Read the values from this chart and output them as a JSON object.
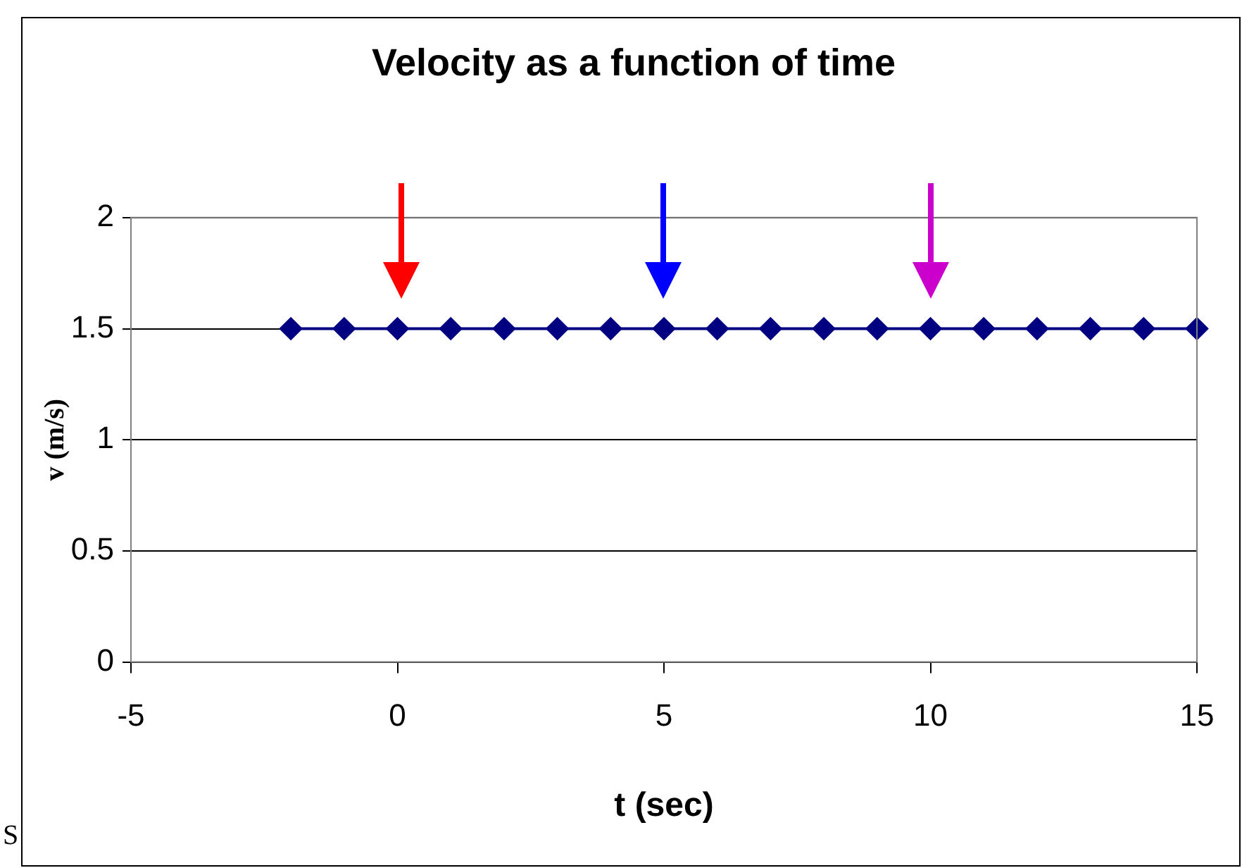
{
  "chart_data": {
    "type": "line",
    "title": "Velocity as a function of time",
    "xlabel": "t (sec)",
    "ylabel": "v (m/s)",
    "x": [
      -2,
      -1,
      0,
      1,
      2,
      3,
      4,
      5,
      6,
      7,
      8,
      9,
      10,
      11,
      12,
      13,
      14,
      15
    ],
    "series": [
      {
        "color": "#000080",
        "values": [
          1.5,
          1.5,
          1.5,
          1.5,
          1.5,
          1.5,
          1.5,
          1.5,
          1.5,
          1.5,
          1.5,
          1.5,
          1.5,
          1.5,
          1.5,
          1.5,
          1.5,
          1.5
        ]
      }
    ],
    "xlim": [
      -5,
      15
    ],
    "xticks": [
      -5,
      0,
      5,
      10,
      15
    ],
    "ylim": [
      0,
      2
    ],
    "yticks": [
      0,
      0.5,
      1,
      1.5,
      2
    ],
    "grid": "y",
    "legend": false,
    "marker": "diamond",
    "line_style": "solid",
    "annotations": [
      "S"
    ]
  }
}
